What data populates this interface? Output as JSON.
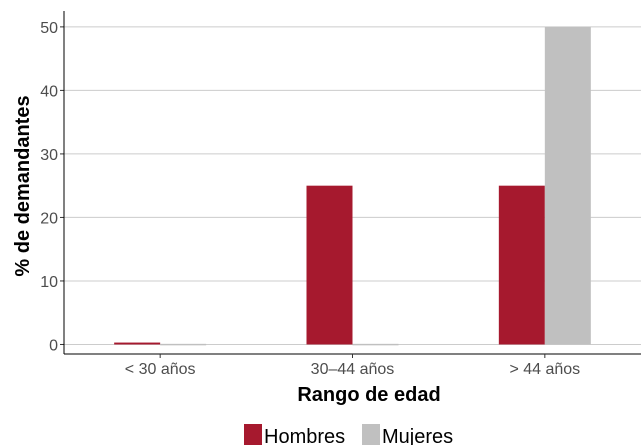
{
  "chart_data": {
    "type": "bar",
    "xlabel": "Rango de edad",
    "ylabel": "% de demandantes",
    "categories": [
      "< 30 años",
      "30–44 años",
      "> 44 años"
    ],
    "series": [
      {
        "name": "Hombres",
        "color": "#a6192e",
        "values": [
          0.3,
          25,
          25
        ]
      },
      {
        "name": "Mujeres",
        "color": "#c0c0c0",
        "values": [
          0.1,
          0.1,
          50
        ]
      }
    ],
    "ylim": [
      -1.5,
      52.5
    ],
    "yticks": [
      0,
      10,
      20,
      30,
      40,
      50
    ],
    "grid": "horizontal",
    "legend_position": "bottom"
  }
}
